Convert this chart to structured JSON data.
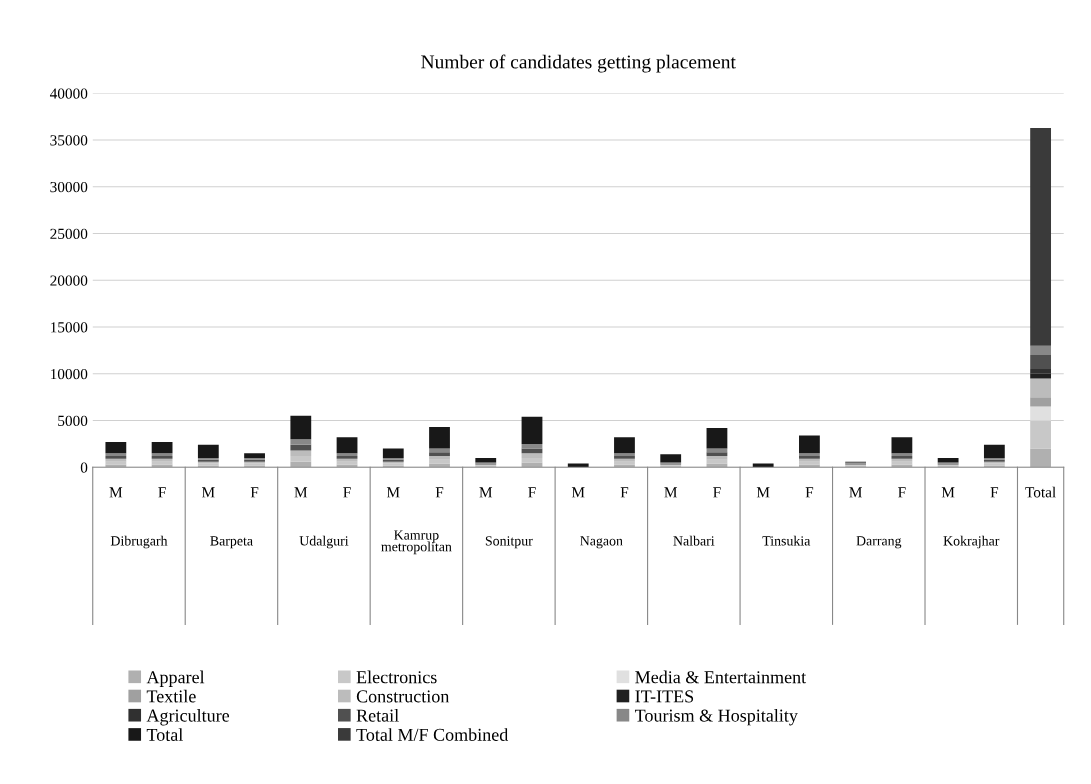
{
  "chart_data": {
    "type": "bar",
    "stacked": true,
    "title": "Number of candidates getting placement",
    "categories": [
      "M",
      "F",
      "M",
      "F",
      "M",
      "F",
      "M",
      "F",
      "M",
      "F",
      "M",
      "F",
      "M",
      "F",
      "M",
      "F",
      "M",
      "F",
      "M",
      "F",
      "Total"
    ],
    "annotations": [
      "Dibrugarh",
      "Barpeta",
      "Udalguri",
      "Kamrup\nmetropolitan",
      "Sonitpur",
      "Nagaon",
      "Nalbari",
      "Tinsukia",
      "Darrang",
      "Kokrajhar"
    ],
    "ylim": [
      0,
      40000
    ],
    "yticks": [
      0,
      5000,
      10000,
      15000,
      20000,
      25000,
      30000,
      35000,
      40000
    ],
    "grid": "y",
    "legend": "bottom",
    "series": [
      {
        "name": "Apparel",
        "color": "#b0b0b0",
        "values": [
          300,
          300,
          200,
          200,
          600,
          300,
          200,
          400,
          100,
          500,
          0,
          300,
          100,
          400,
          0,
          300,
          100,
          300,
          100,
          200,
          2000
        ]
      },
      {
        "name": "Electronics",
        "color": "#c8c8c8",
        "values": [
          300,
          300,
          200,
          200,
          600,
          300,
          200,
          400,
          100,
          500,
          0,
          300,
          100,
          400,
          0,
          300,
          100,
          300,
          100,
          200,
          3000
        ]
      },
      {
        "name": "Media & Entertainment",
        "color": "#e0e0e0",
        "values": [
          0,
          0,
          0,
          0,
          0,
          0,
          0,
          0,
          0,
          0,
          0,
          0,
          0,
          0,
          0,
          0,
          0,
          0,
          0,
          0,
          1500
        ]
      },
      {
        "name": "Textile",
        "color": "#a0a0a0",
        "values": [
          0,
          0,
          0,
          0,
          0,
          0,
          0,
          0,
          0,
          0,
          0,
          0,
          0,
          0,
          0,
          0,
          0,
          0,
          0,
          0,
          1000
        ]
      },
      {
        "name": "Construction",
        "color": "#bcbcbc",
        "values": [
          300,
          300,
          200,
          200,
          600,
          300,
          200,
          400,
          100,
          500,
          0,
          300,
          100,
          400,
          0,
          300,
          100,
          300,
          100,
          200,
          2000
        ]
      },
      {
        "name": "IT-ITES",
        "color": "#202020",
        "values": [
          0,
          0,
          0,
          0,
          0,
          0,
          0,
          0,
          0,
          0,
          0,
          0,
          0,
          0,
          0,
          0,
          0,
          0,
          0,
          0,
          500
        ]
      },
      {
        "name": "Agriculture",
        "color": "#303030",
        "values": [
          0,
          0,
          0,
          0,
          0,
          0,
          0,
          0,
          0,
          0,
          0,
          0,
          0,
          0,
          0,
          0,
          0,
          0,
          0,
          0,
          500
        ]
      },
      {
        "name": "Retail",
        "color": "#505050",
        "values": [
          300,
          300,
          200,
          200,
          600,
          300,
          200,
          400,
          100,
          500,
          0,
          300,
          100,
          400,
          0,
          300,
          100,
          300,
          100,
          200,
          1500
        ]
      },
      {
        "name": "Tourism & Hospitality",
        "color": "#888888",
        "values": [
          300,
          300,
          200,
          200,
          600,
          300,
          200,
          400,
          100,
          500,
          0,
          300,
          100,
          400,
          0,
          300,
          100,
          300,
          100,
          200,
          1000
        ]
      },
      {
        "name": "Total",
        "color": "#181818",
        "values": [
          1200,
          1200,
          1400,
          500,
          2500,
          1700,
          1000,
          2300,
          500,
          2900,
          400,
          1700,
          900,
          2200,
          400,
          1900,
          100,
          1700,
          500,
          1400,
          0
        ]
      },
      {
        "name": "Total M/F Combined",
        "color": "#3a3a3a",
        "values": [
          0,
          0,
          0,
          0,
          0,
          0,
          0,
          0,
          0,
          0,
          0,
          0,
          0,
          0,
          0,
          0,
          0,
          0,
          0,
          0,
          23300
        ]
      }
    ]
  }
}
